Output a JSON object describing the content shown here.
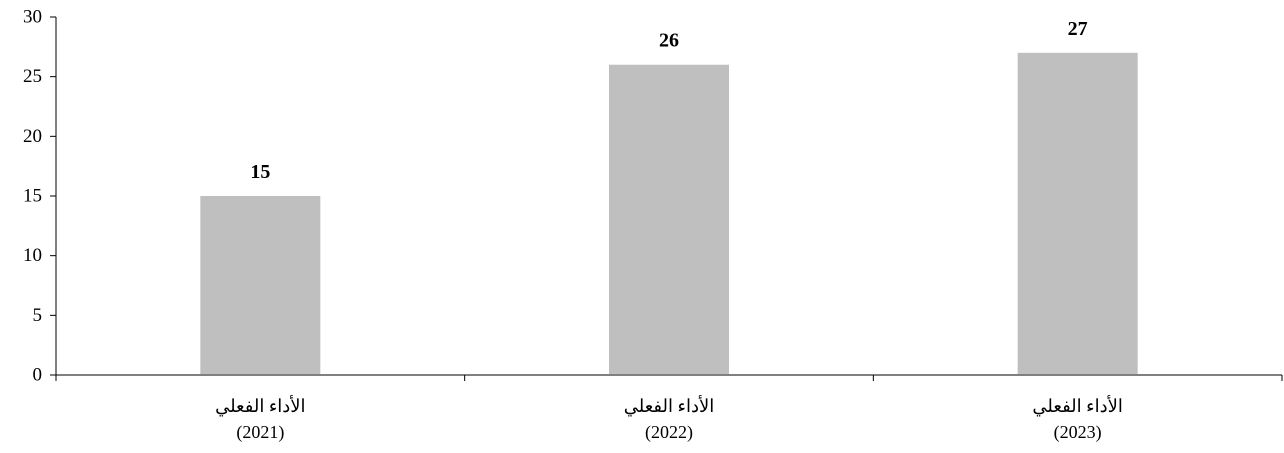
{
  "chart_data": {
    "type": "bar",
    "categories": [
      [
        "الأداء الفعلي",
        "(2021)"
      ],
      [
        "الأداء الفعلي",
        "(2022)"
      ],
      [
        "الأداء الفعلي",
        "(2023)"
      ]
    ],
    "values": [
      15,
      26,
      27
    ],
    "data_labels": [
      "15",
      "26",
      "27"
    ],
    "ylim": [
      0,
      30
    ],
    "yticks": [
      0,
      5,
      10,
      15,
      20,
      25,
      30
    ],
    "title": "",
    "xlabel": "",
    "ylabel": "",
    "grid": false,
    "legend": "none",
    "colors": {
      "bar": "#bfbfbf",
      "axis": "#000000",
      "text": "#000000"
    }
  }
}
